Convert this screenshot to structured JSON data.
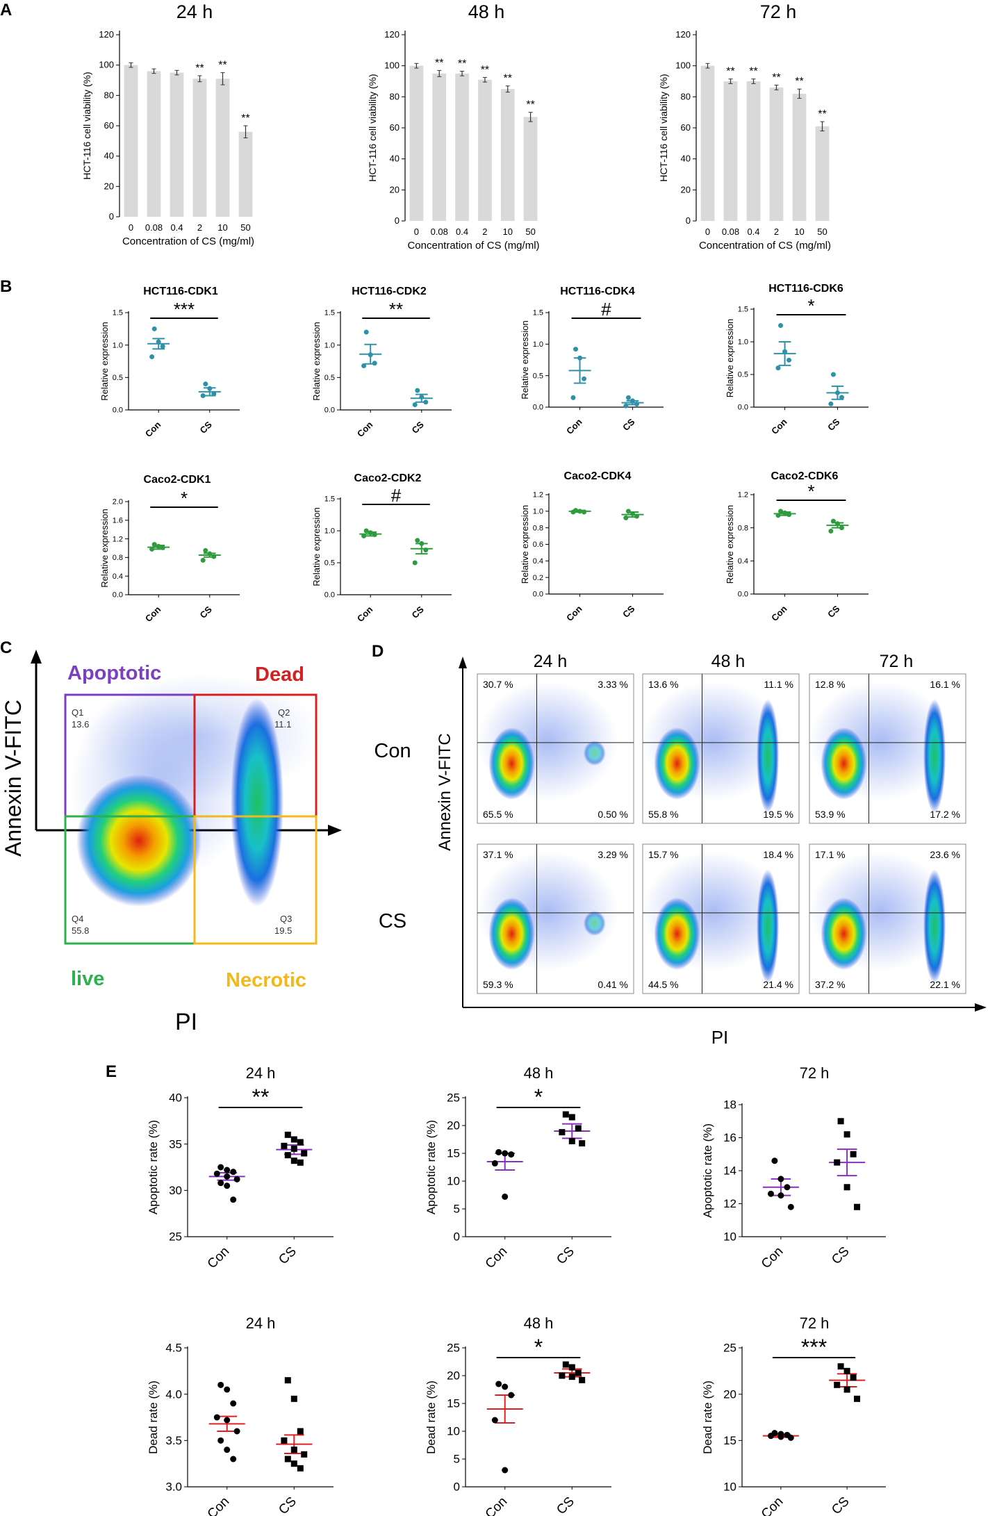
{
  "panel_letters": {
    "a": "A",
    "b": "B",
    "c": "C",
    "d": "D",
    "e": "E"
  },
  "colors": {
    "bar": "#d9d9d9",
    "blue": "#2f91a8",
    "green": "#2e9c3e",
    "purple": "#8a2fbf",
    "red": "#e02020",
    "apoptotic": "#7b3fbf",
    "dead": "#d42020",
    "live": "#2bb24c",
    "necrotic": "#f3b81a"
  },
  "chart_data": [
    {
      "id": "A1",
      "type": "bar",
      "title": "24 h",
      "xlabel": "Concentration of CS (mg/ml)",
      "ylabel": "HCT-116 cell viability (%)",
      "categories": [
        "0",
        "0.08",
        "0.4",
        "2",
        "10",
        "50"
      ],
      "values": [
        100,
        96,
        95,
        91,
        91,
        56
      ],
      "errors": [
        1.5,
        1.5,
        1.5,
        2,
        4,
        4
      ],
      "sig": [
        "",
        "",
        "",
        "**",
        "**",
        "**"
      ],
      "ylim": [
        0,
        120
      ],
      "yticks": [
        0,
        20,
        40,
        60,
        80,
        100,
        120
      ]
    },
    {
      "id": "A2",
      "type": "bar",
      "title": "48 h",
      "xlabel": "Concentration of CS (mg/ml)",
      "ylabel": "HCT-116 cell viability (%)",
      "categories": [
        "0",
        "0.08",
        "0.4",
        "2",
        "10",
        "50"
      ],
      "values": [
        100,
        95,
        95,
        91,
        85,
        67
      ],
      "errors": [
        1.5,
        2,
        1.5,
        1.5,
        2,
        3
      ],
      "sig": [
        "",
        "**",
        "**",
        "**",
        "**",
        "**"
      ],
      "ylim": [
        0,
        120
      ],
      "yticks": [
        0,
        20,
        40,
        60,
        80,
        100,
        120
      ]
    },
    {
      "id": "A3",
      "type": "bar",
      "title": "72 h",
      "xlabel": "Concentration of CS (mg/ml)",
      "ylabel": "HCT-116 cell viability (%)",
      "categories": [
        "0",
        "0.08",
        "0.4",
        "2",
        "10",
        "50"
      ],
      "values": [
        100,
        90,
        90,
        86,
        82,
        61
      ],
      "errors": [
        1.5,
        1.5,
        1.5,
        1.5,
        3,
        3
      ],
      "sig": [
        "",
        "**",
        "**",
        "**",
        "**",
        "**"
      ],
      "ylim": [
        0,
        120
      ],
      "yticks": [
        0,
        20,
        40,
        60,
        80,
        100,
        120
      ]
    },
    {
      "id": "B1",
      "type": "scatter",
      "title": "HCT116-CDK1",
      "ylabel": "Relative expression",
      "categories": [
        "Con",
        "CS"
      ],
      "means": [
        1.02,
        0.28
      ],
      "sems": [
        0.08,
        0.06
      ],
      "points": [
        [
          1.25,
          1.05,
          0.98,
          0.82
        ],
        [
          0.4,
          0.33,
          0.25,
          0.22
        ]
      ],
      "sig": "***",
      "ylim": [
        0,
        1.5
      ],
      "yticks": [
        "0.0",
        "0.5",
        "1.0",
        "1.5"
      ],
      "color": "blue"
    },
    {
      "id": "B2",
      "type": "scatter",
      "title": "HCT116-CDK2",
      "ylabel": "Relative expression",
      "categories": [
        "Con",
        "CS"
      ],
      "means": [
        0.86,
        0.18
      ],
      "sems": [
        0.15,
        0.06
      ],
      "points": [
        [
          1.2,
          0.85,
          0.72,
          0.68
        ],
        [
          0.3,
          0.2,
          0.12,
          0.08
        ]
      ],
      "sig": "**",
      "ylim": [
        0,
        1.5
      ],
      "yticks": [
        "0.0",
        "0.5",
        "1.0",
        "1.5"
      ],
      "color": "blue"
    },
    {
      "id": "B3",
      "type": "scatter",
      "title": "HCT116-CDK4",
      "ylabel": "Relative expression",
      "categories": [
        "Con",
        "CS"
      ],
      "means": [
        0.58,
        0.07
      ],
      "sems": [
        0.2,
        0.03
      ],
      "points": [
        [
          0.92,
          0.78,
          0.45,
          0.15
        ],
        [
          0.15,
          0.1,
          0.05,
          0.02
        ]
      ],
      "sig": "#",
      "ylim": [
        0,
        1.5
      ],
      "yticks": [
        "0.0",
        "0.5",
        "1.0",
        "1.5"
      ],
      "color": "blue"
    },
    {
      "id": "B4",
      "type": "scatter",
      "title": "HCT116-CDK6",
      "ylabel": "Relative expression",
      "categories": [
        "Con",
        "CS"
      ],
      "means": [
        0.82,
        0.22
      ],
      "sems": [
        0.18,
        0.1
      ],
      "points": [
        [
          1.25,
          0.85,
          0.72,
          0.6
        ],
        [
          0.5,
          0.22,
          0.15,
          0.05
        ]
      ],
      "sig": "*",
      "ylim": [
        0,
        1.5
      ],
      "yticks": [
        "0.0",
        "0.5",
        "1.0",
        "1.5"
      ],
      "color": "blue"
    },
    {
      "id": "B5",
      "type": "scatter",
      "title": "Caco2-CDK1",
      "ylabel": "Relative expression",
      "categories": [
        "Con",
        "CS"
      ],
      "means": [
        1.02,
        0.85
      ],
      "sems": [
        0.04,
        0.04
      ],
      "points": [
        [
          1.08,
          1.04,
          1.01,
          0.98
        ],
        [
          0.95,
          0.88,
          0.82,
          0.74
        ]
      ],
      "sig": "*",
      "ylim": [
        0,
        2.0
      ],
      "yticks": [
        "0.0",
        "0.4",
        "0.8",
        "1.2",
        "1.6",
        "2.0"
      ],
      "color": "green"
    },
    {
      "id": "B6",
      "type": "scatter",
      "title": "Caco2-CDK2",
      "ylabel": "Relative expression",
      "categories": [
        "Con",
        "CS"
      ],
      "means": [
        0.95,
        0.72
      ],
      "sems": [
        0.03,
        0.08
      ],
      "points": [
        [
          1.0,
          0.97,
          0.94,
          0.92
        ],
        [
          0.85,
          0.8,
          0.7,
          0.5
        ]
      ],
      "sig": "#",
      "ylim": [
        0,
        1.5
      ],
      "yticks": [
        "0.0",
        "0.5",
        "1.0",
        "1.5"
      ],
      "color": "green"
    },
    {
      "id": "B7",
      "type": "scatter",
      "title": "Caco2-CDK4",
      "ylabel": "Relative expression",
      "categories": [
        "Con",
        "CS"
      ],
      "means": [
        1.0,
        0.96
      ],
      "sems": [
        0.01,
        0.03
      ],
      "points": [
        [
          1.01,
          1.0,
          0.99,
          0.99
        ],
        [
          1.0,
          0.97,
          0.94,
          0.92
        ]
      ],
      "sig": "",
      "ylim": [
        0,
        1.2
      ],
      "yticks": [
        "0.0",
        "0.2",
        "0.4",
        "0.6",
        "0.8",
        "1.0",
        "1.2"
      ],
      "color": "green"
    },
    {
      "id": "B8",
      "type": "scatter",
      "title": "Caco2-CDK6",
      "ylabel": "Relative expression",
      "categories": [
        "Con",
        "CS"
      ],
      "means": [
        0.97,
        0.83
      ],
      "sems": [
        0.02,
        0.03
      ],
      "points": [
        [
          1.0,
          0.98,
          0.96,
          0.95
        ],
        [
          0.88,
          0.85,
          0.8,
          0.76
        ]
      ],
      "sig": "*",
      "ylim": [
        0,
        1.2
      ],
      "yticks": [
        "0.0",
        "0.4",
        "0.8",
        "1.2"
      ],
      "color": "green"
    },
    {
      "id": "E1",
      "type": "scatter",
      "title": "24 h",
      "ylabel": "Apoptotic rate (%)",
      "categories": [
        "Con",
        "CS"
      ],
      "means": [
        31.5,
        34.4
      ],
      "sems": [
        0.4,
        0.5
      ],
      "points": [
        [
          32.5,
          32.2,
          32.0,
          31.8,
          31.5,
          31.2,
          30.8,
          30.5,
          29.0
        ],
        [
          36.0,
          35.5,
          35.2,
          34.8,
          34.5,
          34.0,
          33.8,
          33.2,
          33.0
        ]
      ],
      "sig": "**",
      "ylim": [
        25,
        40
      ],
      "yticks": [
        "25",
        "30",
        "35",
        "40"
      ],
      "color": "purple",
      "marker2": "square"
    },
    {
      "id": "E2",
      "type": "scatter",
      "title": "48 h",
      "ylabel": "Apoptotic rate (%)",
      "categories": [
        "Con",
        "CS"
      ],
      "means": [
        13.5,
        19.0
      ],
      "sems": [
        1.5,
        1.3
      ],
      "points": [
        [
          15.2,
          15.0,
          14.8,
          13.2,
          7.2
        ],
        [
          22.0,
          21.5,
          19.5,
          18.8,
          17.2,
          16.8
        ]
      ],
      "sig": "*",
      "ylim": [
        0,
        25
      ],
      "yticks": [
        "0",
        "5",
        "10",
        "15",
        "20",
        "25"
      ],
      "color": "purple",
      "marker2": "square"
    },
    {
      "id": "E3",
      "type": "scatter",
      "title": "72 h",
      "ylabel": "Apoptotic rate (%)",
      "categories": [
        "Con",
        "CS"
      ],
      "means": [
        13.0,
        14.5
      ],
      "sems": [
        0.5,
        0.8
      ],
      "points": [
        [
          14.6,
          13.5,
          13.0,
          12.6,
          12.5,
          11.8
        ],
        [
          17.0,
          16.2,
          15.0,
          14.5,
          13.0,
          11.8
        ]
      ],
      "sig": "",
      "ylim": [
        10,
        18
      ],
      "yticks": [
        "10",
        "12",
        "14",
        "16",
        "18"
      ],
      "color": "purple",
      "marker2": "square"
    },
    {
      "id": "E4",
      "type": "scatter",
      "title": "24 h",
      "ylabel": "Dead rate (%)",
      "categories": [
        "Con",
        "CS"
      ],
      "means": [
        3.68,
        3.46
      ],
      "sems": [
        0.08,
        0.1
      ],
      "points": [
        [
          4.1,
          4.05,
          3.9,
          3.75,
          3.72,
          3.6,
          3.5,
          3.4,
          3.3
        ],
        [
          4.15,
          3.95,
          3.6,
          3.5,
          3.4,
          3.35,
          3.3,
          3.25,
          3.2
        ]
      ],
      "sig": "",
      "ylim": [
        3.0,
        4.5
      ],
      "yticks": [
        "3.0",
        "3.5",
        "4.0",
        "4.5"
      ],
      "color": "red",
      "marker2": "square"
    },
    {
      "id": "E5",
      "type": "scatter",
      "title": "48 h",
      "ylabel": "Dead rate (%)",
      "categories": [
        "Con",
        "CS"
      ],
      "means": [
        14.0,
        20.5
      ],
      "sems": [
        2.5,
        0.7
      ],
      "points": [
        [
          18.5,
          18.0,
          16.5,
          12.0,
          3.0
        ],
        [
          22.0,
          21.5,
          20.5,
          20.0,
          19.8,
          19.2
        ]
      ],
      "sig": "*",
      "ylim": [
        0,
        25
      ],
      "yticks": [
        "0",
        "5",
        "10",
        "15",
        "20",
        "25"
      ],
      "color": "red",
      "marker2": "square"
    },
    {
      "id": "E6",
      "type": "scatter",
      "title": "72 h",
      "ylabel": "Dead rate (%)",
      "categories": [
        "Con",
        "CS"
      ],
      "means": [
        15.5,
        21.5
      ],
      "sems": [
        0.15,
        0.7
      ],
      "points": [
        [
          15.8,
          15.7,
          15.6,
          15.5,
          15.4,
          15.3
        ],
        [
          23.0,
          22.5,
          21.8,
          21.0,
          20.5,
          19.5
        ]
      ],
      "sig": "***",
      "ylim": [
        10,
        25
      ],
      "yticks": [
        "10",
        "15",
        "20",
        "25"
      ],
      "color": "red",
      "marker2": "square"
    }
  ],
  "flow_c": {
    "ylabel": "Annexin V-FITC",
    "xlabel": "PI",
    "apoptotic": "Apoptotic",
    "dead": "Dead",
    "live": "live",
    "necrotic": "Necrotic",
    "q1": "Q1",
    "q1v": "13.6",
    "q2": "Q2",
    "q2v": "11.1",
    "q3": "Q3",
    "q3v": "19.5",
    "q4": "Q4",
    "q4v": "55.8"
  },
  "flow_d": {
    "ylabel": "Annexin V-FITC",
    "xlabel": "PI",
    "cols": [
      "24 h",
      "48 h",
      "72 h"
    ],
    "rows": [
      "Con",
      "CS"
    ],
    "plots": [
      {
        "tl": "30.7 %",
        "tr": "3.33 %",
        "bl": "65.5 %",
        "br": "0.50 %"
      },
      {
        "tl": "13.6 %",
        "tr": "11.1 %",
        "bl": "55.8 %",
        "br": "19.5 %"
      },
      {
        "tl": "12.8 %",
        "tr": "16.1 %",
        "bl": "53.9 %",
        "br": "17.2 %"
      },
      {
        "tl": "37.1 %",
        "tr": "3.29 %",
        "bl": "59.3 %",
        "br": "0.41 %"
      },
      {
        "tl": "15.7 %",
        "tr": "18.4 %",
        "bl": "44.5 %",
        "br": "21.4 %"
      },
      {
        "tl": "17.1 %",
        "tr": "23.6 %",
        "bl": "37.2 %",
        "br": "22.1 %"
      }
    ]
  }
}
